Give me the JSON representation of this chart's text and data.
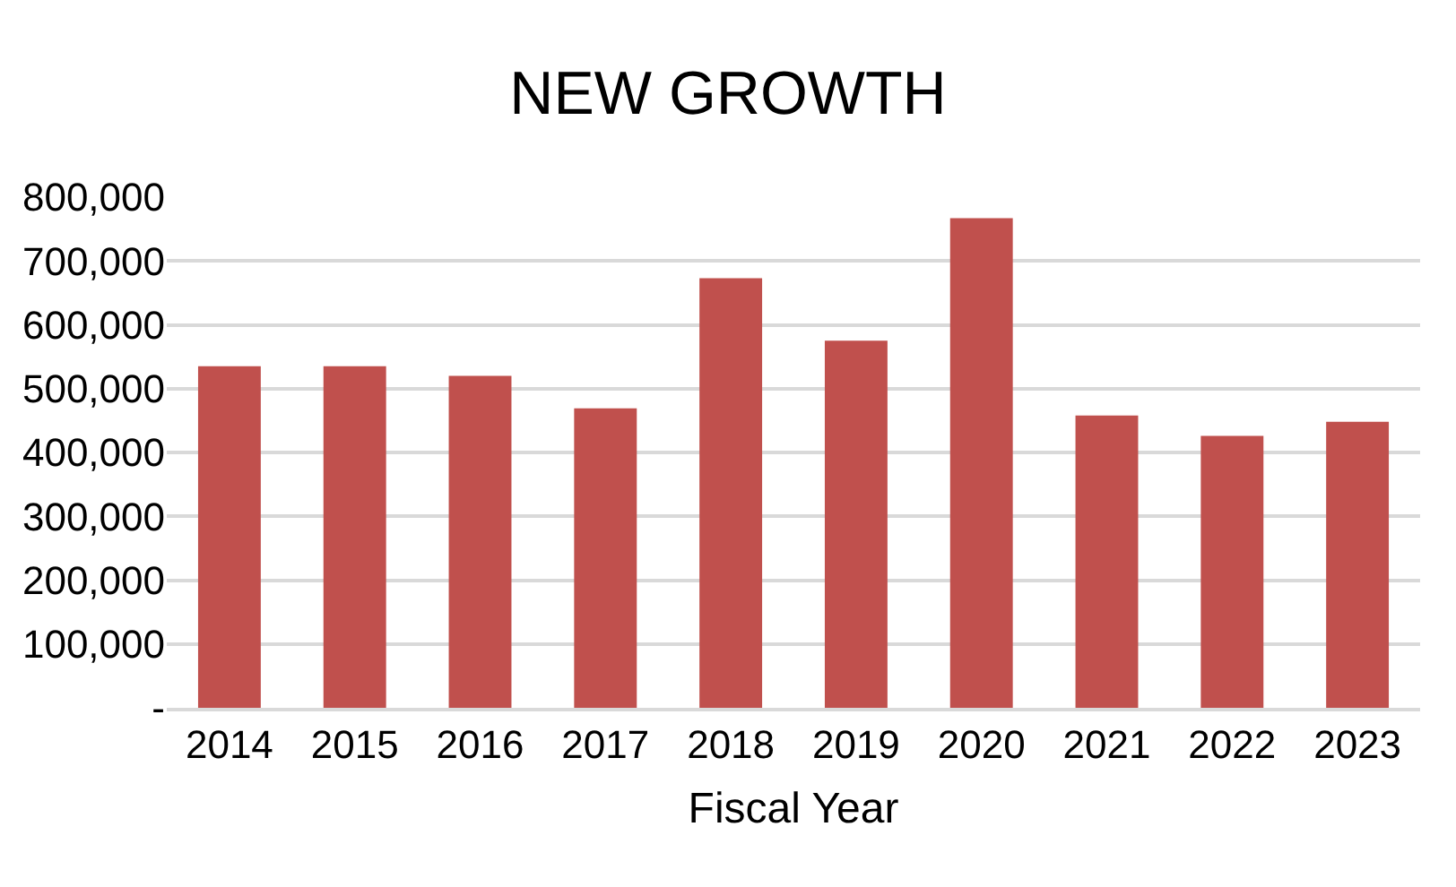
{
  "chart_data": {
    "type": "bar",
    "title": "NEW GROWTH",
    "xlabel": "Fiscal Year",
    "categories": [
      "2014",
      "2015",
      "2016",
      "2017",
      "2018",
      "2019",
      "2020",
      "2021",
      "2022",
      "2023"
    ],
    "values": [
      535000,
      535000,
      520000,
      469000,
      673000,
      575000,
      767000,
      458000,
      426000,
      448000
    ],
    "color": "#c0504d",
    "ylim": [
      0,
      800000
    ],
    "yticks": [
      {
        "value": 0,
        "label": "-"
      },
      {
        "value": 100000,
        "label": "100,000"
      },
      {
        "value": 200000,
        "label": "200,000"
      },
      {
        "value": 300000,
        "label": "300,000"
      },
      {
        "value": 400000,
        "label": "400,000"
      },
      {
        "value": 500000,
        "label": "500,000"
      },
      {
        "value": 600000,
        "label": "600,000"
      },
      {
        "value": 700000,
        "label": "700,000"
      },
      {
        "value": 800000,
        "label": "800,000"
      }
    ],
    "grid": "y"
  }
}
